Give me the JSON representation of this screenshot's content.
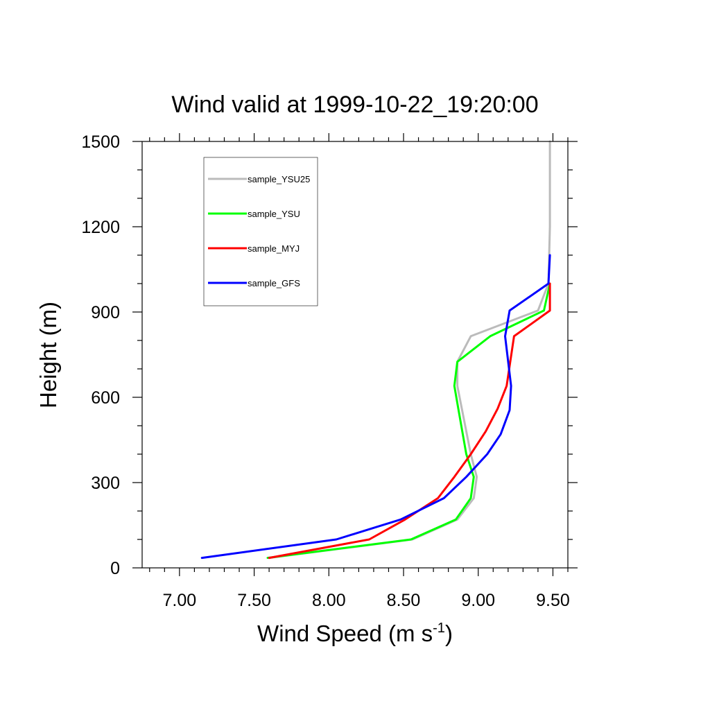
{
  "chart_data": {
    "type": "line",
    "title": "Wind valid at 1999-10-22_19:20:00",
    "xlabel": "Wind Speed (m s",
    "xlabel_superscript": "-1",
    "xlabel_suffix": ")",
    "ylabel": "Height (m)",
    "xlim": [
      6.75,
      9.6
    ],
    "ylim": [
      0,
      1500
    ],
    "x_ticks": [
      7.0,
      7.5,
      8.0,
      8.5,
      9.0,
      9.5
    ],
    "x_tick_labels": [
      "7.00",
      "7.50",
      "8.00",
      "8.50",
      "9.00",
      "9.50"
    ],
    "y_ticks": [
      0,
      300,
      600,
      900,
      1200,
      1500
    ],
    "y_tick_labels": [
      "0",
      "300",
      "600",
      "900",
      "1200",
      "1500"
    ],
    "x_minor_step": 0.1,
    "y_minor_step": 100,
    "grid": false,
    "legend_position": "top-left",
    "series": [
      {
        "name": "sample_YSU25",
        "color": "#bbbbbb",
        "points": [
          [
            7.6,
            35
          ],
          [
            8.56,
            100
          ],
          [
            8.86,
            170
          ],
          [
            8.97,
            245
          ],
          [
            8.99,
            320
          ],
          [
            8.95,
            400
          ],
          [
            8.86,
            640
          ],
          [
            8.86,
            725
          ],
          [
            8.95,
            815
          ],
          [
            9.4,
            905
          ],
          [
            9.47,
            1000
          ],
          [
            9.48,
            1200
          ],
          [
            9.48,
            1500
          ]
        ]
      },
      {
        "name": "sample_YSU",
        "color": "#00ff00",
        "points": [
          [
            7.59,
            35
          ],
          [
            8.55,
            100
          ],
          [
            8.85,
            170
          ],
          [
            8.95,
            245
          ],
          [
            8.97,
            320
          ],
          [
            8.92,
            400
          ],
          [
            8.87,
            550
          ],
          [
            8.84,
            640
          ],
          [
            8.86,
            725
          ],
          [
            9.08,
            815
          ],
          [
            9.44,
            905
          ],
          [
            9.48,
            1000
          ]
        ]
      },
      {
        "name": "sample_MYJ",
        "color": "#ff0000",
        "points": [
          [
            7.6,
            35
          ],
          [
            8.27,
            100
          ],
          [
            8.51,
            170
          ],
          [
            8.73,
            245
          ],
          [
            8.84,
            320
          ],
          [
            8.95,
            400
          ],
          [
            9.05,
            480
          ],
          [
            9.13,
            560
          ],
          [
            9.19,
            640
          ],
          [
            9.24,
            815
          ],
          [
            9.48,
            905
          ],
          [
            9.48,
            1000
          ]
        ]
      },
      {
        "name": "sample_GFS",
        "color": "#0000ff",
        "points": [
          [
            7.15,
            35
          ],
          [
            8.05,
            100
          ],
          [
            8.48,
            170
          ],
          [
            8.77,
            245
          ],
          [
            8.92,
            320
          ],
          [
            9.06,
            400
          ],
          [
            9.15,
            470
          ],
          [
            9.21,
            555
          ],
          [
            9.22,
            640
          ],
          [
            9.18,
            815
          ],
          [
            9.21,
            905
          ],
          [
            9.47,
            1000
          ],
          [
            9.48,
            1100
          ]
        ]
      }
    ]
  }
}
